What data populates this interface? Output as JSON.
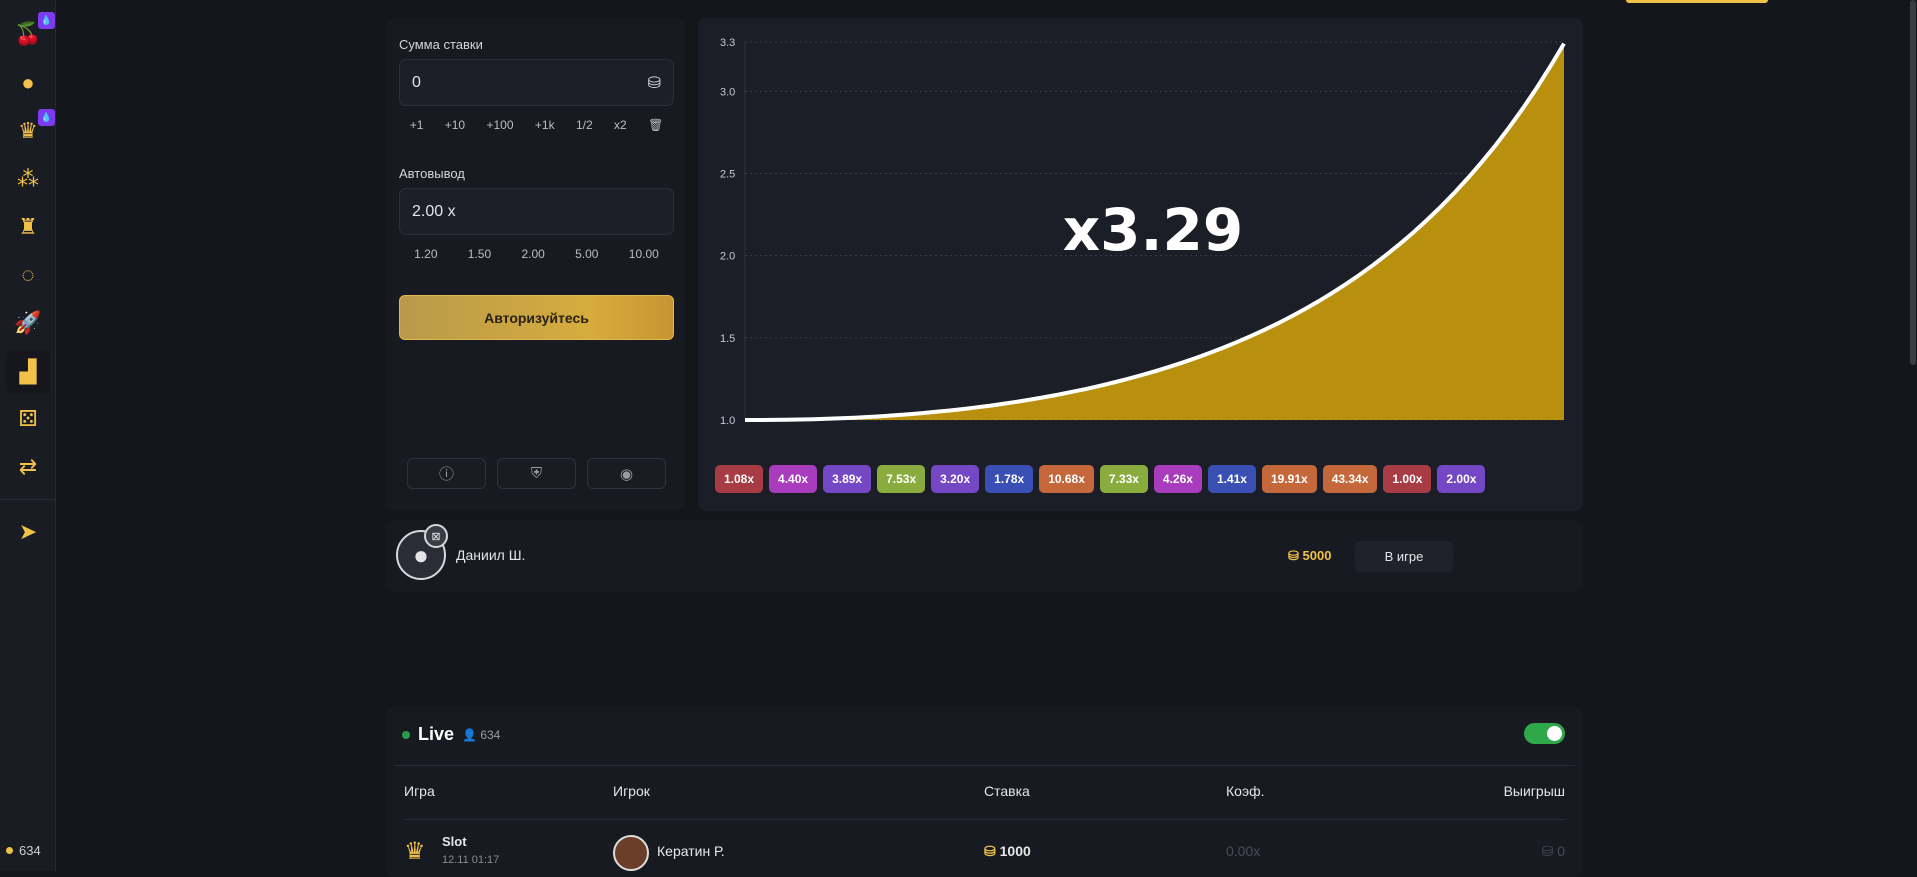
{
  "sidebar": {
    "items": [
      {
        "icon": "cherry-icon",
        "badge": true
      },
      {
        "icon": "fruit-icon",
        "badge": false
      },
      {
        "icon": "crown-icon",
        "badge": true
      },
      {
        "icon": "pyramid-balls-icon",
        "badge": false
      },
      {
        "icon": "tower-icon",
        "badge": false
      },
      {
        "icon": "wheel-icon",
        "badge": false
      },
      {
        "icon": "rocket-icon",
        "badge": false
      },
      {
        "icon": "chart-bars-icon",
        "badge": false,
        "active": true
      },
      {
        "icon": "dice-icon",
        "badge": false
      },
      {
        "icon": "coins-swap-icon",
        "badge": false
      }
    ],
    "telegram": "telegram-icon",
    "online_count": "634"
  },
  "bet": {
    "amount_label": "Сумма ставки",
    "amount_value": "0",
    "quick": [
      "+1",
      "+10",
      "+100",
      "+1k",
      "1/2",
      "x2"
    ],
    "auto_label": "Автовывод",
    "auto_value": "2.00 x",
    "auto_quick": [
      "1.20",
      "1.50",
      "2.00",
      "5.00",
      "10.00"
    ],
    "auth_button": "Авторизуйтесь"
  },
  "chart_data": {
    "type": "area",
    "current_multiplier": "x3.29",
    "y_ticks": [
      "1.0",
      "1.5",
      "2.0",
      "2.5",
      "3.0",
      "3.3"
    ],
    "ylim": [
      1.0,
      3.3
    ],
    "y_start": 1.0,
    "y_end": 3.29,
    "grid": true,
    "fill_color": "#b8900e",
    "line_color": "#ffffff"
  },
  "history": [
    {
      "v": "1.08x",
      "c": "#a83c44"
    },
    {
      "v": "4.40x",
      "c": "#a83cbc"
    },
    {
      "v": "3.89x",
      "c": "#7447c4"
    },
    {
      "v": "7.53x",
      "c": "#8aac3e"
    },
    {
      "v": "3.20x",
      "c": "#7447c4"
    },
    {
      "v": "1.78x",
      "c": "#3a4fb4"
    },
    {
      "v": "10.68x",
      "c": "#c4683c"
    },
    {
      "v": "7.33x",
      "c": "#8aac3e"
    },
    {
      "v": "4.26x",
      "c": "#a83cbc"
    },
    {
      "v": "1.41x",
      "c": "#3a4fb4"
    },
    {
      "v": "19.91x",
      "c": "#c4683c"
    },
    {
      "v": "43.34x",
      "c": "#c4683c"
    },
    {
      "v": "1.00x",
      "c": "#a83c44"
    },
    {
      "v": "2.00x",
      "c": "#7447c4"
    }
  ],
  "player": {
    "name": "Даниил Ш.",
    "bet": "5000",
    "status": "В игре"
  },
  "live": {
    "title": "Live",
    "count": "634",
    "headers": [
      "Игра",
      "Игрок",
      "Ставка",
      "Коэф.",
      "Выигрыш"
    ],
    "rows": [
      {
        "game": "Slot",
        "time": "12.11 01:17",
        "player": "Кератин Р.",
        "bet": "1000",
        "coef": "0.00x",
        "win": "0"
      }
    ]
  }
}
